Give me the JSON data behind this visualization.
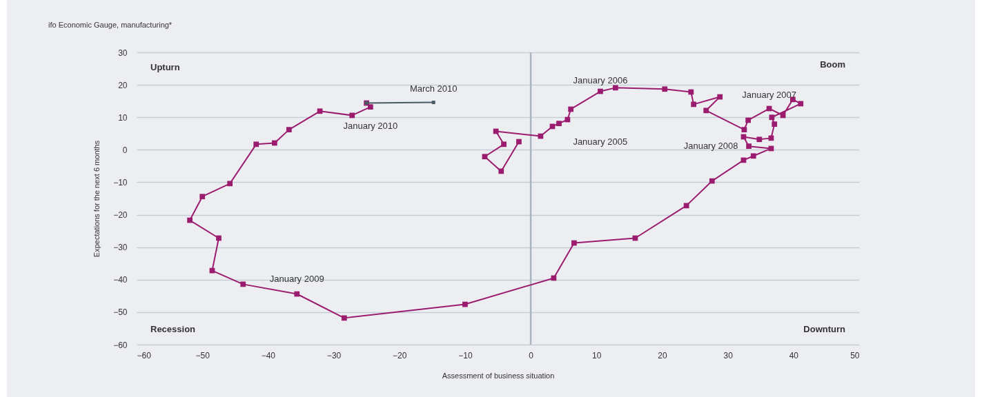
{
  "chart_data": {
    "type": "line",
    "title": "ifo Economic Gauge, manufacturing*",
    "xlabel": "Assessment of business situation",
    "ylabel": "Expectations for the next 6 months",
    "xlim": [
      -60,
      50
    ],
    "xticks": [
      -60,
      -50,
      -40,
      -30,
      -20,
      -10,
      0,
      10,
      20,
      30,
      40,
      50
    ],
    "ylim": [
      -60,
      30
    ],
    "yticks": [
      -60,
      -50,
      -40,
      -30,
      -20,
      -10,
      0,
      10,
      20,
      30
    ],
    "grid": "y",
    "marker": "square",
    "ref_lines": [
      {
        "axis": "x",
        "value": 0,
        "color": "#a9b6bd"
      }
    ],
    "series": [
      {
        "color": "#9b1b6e",
        "x": [
          -1.8,
          -4.5,
          -7.0,
          -4.1,
          -5.3,
          1.5,
          3.3,
          4.3,
          5.6,
          6.1,
          10.6,
          12.9,
          20.4,
          24.4,
          24.8,
          28.8,
          26.7,
          32.5,
          33.1,
          36.3,
          38.4,
          39.9,
          41.1,
          36.7,
          37.1,
          36.6,
          34.8,
          32.4,
          33.2,
          36.6,
          33.9,
          32.4,
          27.6,
          23.7,
          15.9,
          6.6,
          3.5,
          -10.0,
          -28.4,
          -35.6,
          -43.8,
          -48.5,
          -47.5,
          -51.9,
          -50.0,
          -45.8,
          -41.8,
          -39.0,
          -36.8,
          -32.1,
          -27.2,
          -24.4,
          -25.0
        ],
        "values": [
          2.5,
          -6.6,
          -2.1,
          1.7,
          5.7,
          4.2,
          7.2,
          8.1,
          9.3,
          12.5,
          18.0,
          19.1,
          18.7,
          17.8,
          14.0,
          16.3,
          12.1,
          6.2,
          9.1,
          12.7,
          10.6,
          15.5,
          14.2,
          10.0,
          7.9,
          3.6,
          3.2,
          4.0,
          1.1,
          0.4,
          -1.9,
          -3.2,
          -9.6,
          -17.2,
          -27.2,
          -28.7,
          -39.5,
          -47.6,
          -51.8,
          -44.4,
          -41.4,
          -37.2,
          -27.2,
          -21.7,
          -14.4,
          -10.4,
          1.7,
          2.1,
          6.2,
          11.9,
          10.6,
          13.2,
          14.4
        ]
      },
      {
        "color": "#4a5a63",
        "x": [
          -25.0,
          -14.8
        ],
        "values": [
          14.4,
          14.6
        ]
      }
    ],
    "annotations": [
      {
        "text": "January 2005",
        "x": 5.6,
        "y": 9.3
      },
      {
        "text": "January 2006",
        "x": 10.6,
        "y": 18.0
      },
      {
        "text": "January 2007",
        "x": 36.3,
        "y": 12.7
      },
      {
        "text": "January 2008",
        "x": 32.4,
        "y": 4.0
      },
      {
        "text": "January 2009",
        "x": -35.6,
        "y": -44.4
      },
      {
        "text": "January 2010",
        "x": -24.4,
        "y": 13.2
      },
      {
        "text": "March 2010",
        "x": -14.8,
        "y": 14.6
      },
      "Upturn",
      "Boom",
      "Recession",
      "Downturn"
    ]
  }
}
